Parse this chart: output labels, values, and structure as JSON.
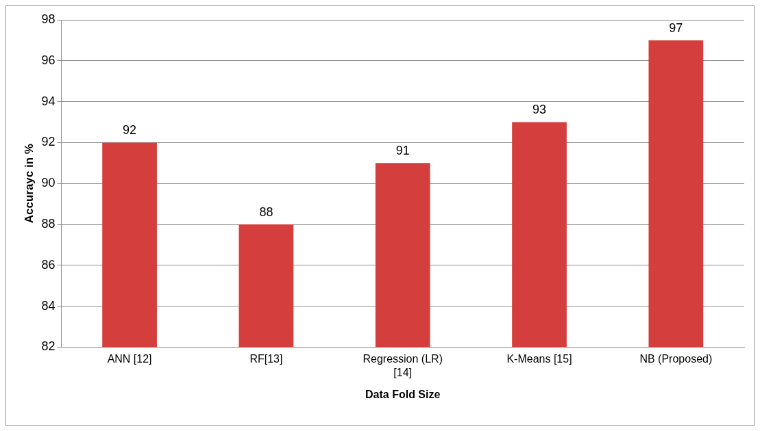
{
  "chart_data": {
    "type": "bar",
    "categories": [
      "ANN [12]",
      "RF[13]",
      "Regression (LR) [14]",
      "K-Means [15]",
      "NB (Proposed)"
    ],
    "values": [
      92,
      88,
      91,
      93,
      97
    ],
    "color": "#d43f3d",
    "xlabel": "Data Fold Size",
    "ylabel": "Accurayc in %",
    "ylim": [
      82,
      98
    ],
    "yticks": [
      82,
      84,
      86,
      88,
      90,
      92,
      94,
      96,
      98
    ],
    "grid": "y",
    "data_labels": true,
    "legend": false
  }
}
